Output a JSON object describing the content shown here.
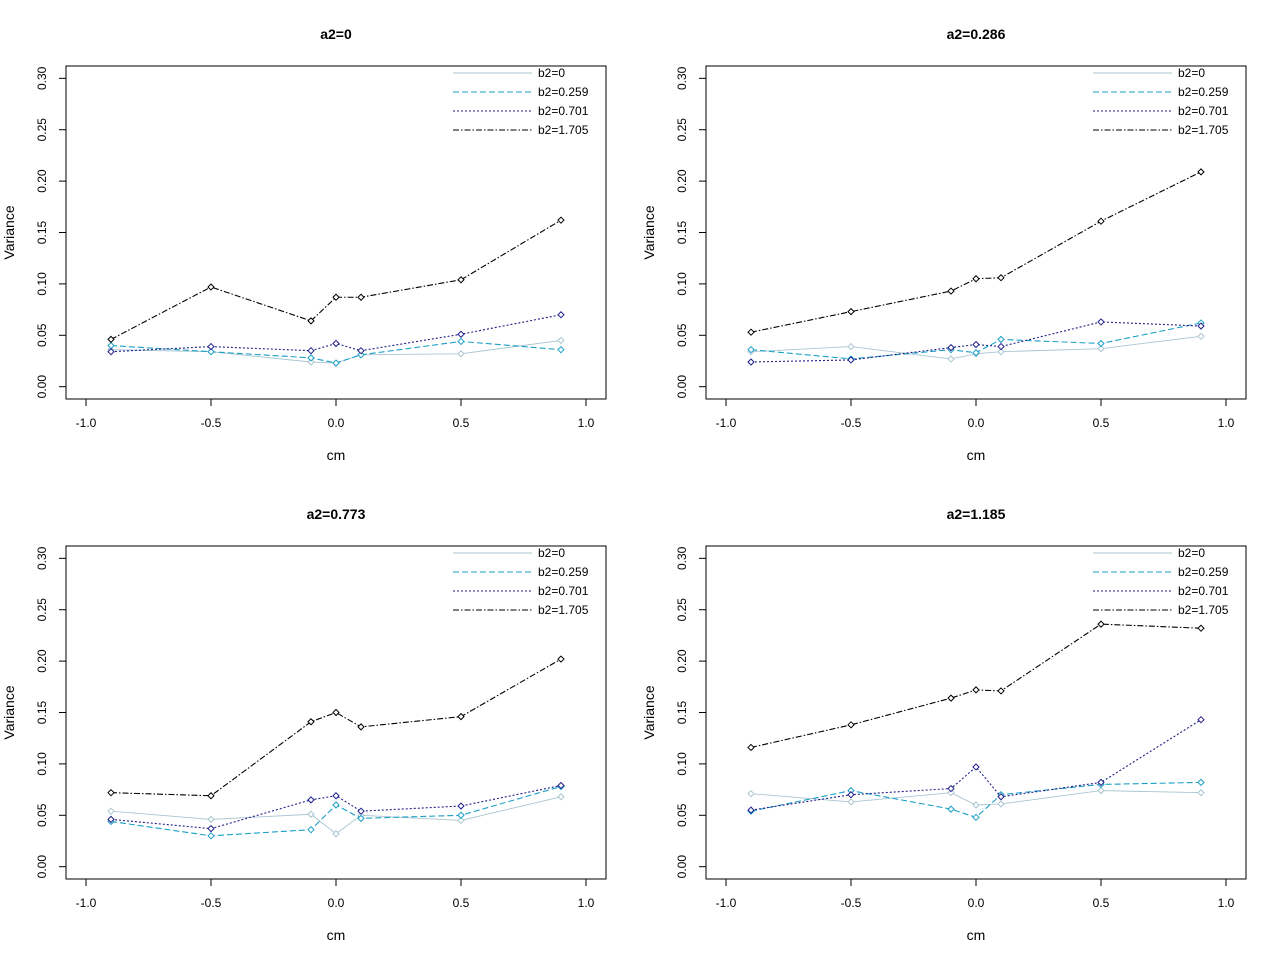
{
  "colors": {
    "b2_0": "#a9c5d0",
    "b2_0259": "#1a9fc7",
    "b2_0701": "#1f1f8a",
    "b2_1705": "#000000"
  },
  "chart_data": [
    {
      "type": "line",
      "title": "a2=0",
      "xlabel": "cm",
      "ylabel": "Variance",
      "xlim": [
        -1.0,
        1.0
      ],
      "ylim": [
        0.0,
        0.3
      ],
      "x_ticks": [
        "-1.0",
        "-0.5",
        "0.0",
        "0.5",
        "1.0"
      ],
      "y_ticks": [
        "0.00",
        "0.05",
        "0.10",
        "0.15",
        "0.20",
        "0.25",
        "0.30"
      ],
      "legend_position": "top-right",
      "x": [
        -0.9,
        -0.5,
        -0.1,
        0.0,
        0.1,
        0.5,
        0.9
      ],
      "series": [
        {
          "name": "b2=0",
          "values": [
            0.036,
            0.034,
            0.024,
            0.023,
            0.031,
            0.032,
            0.045
          ]
        },
        {
          "name": "b2=0.259",
          "values": [
            0.04,
            0.034,
            0.028,
            0.023,
            0.031,
            0.044,
            0.036
          ]
        },
        {
          "name": "b2=0.701",
          "values": [
            0.034,
            0.039,
            0.035,
            0.042,
            0.035,
            0.051,
            0.07
          ]
        },
        {
          "name": "b2=1.705",
          "values": [
            0.046,
            0.097,
            0.064,
            0.087,
            0.087,
            0.104,
            0.162
          ]
        }
      ]
    },
    {
      "type": "line",
      "title": "a2=0.286",
      "xlabel": "cm",
      "ylabel": "Variance",
      "xlim": [
        -1.0,
        1.0
      ],
      "ylim": [
        0.0,
        0.3
      ],
      "x_ticks": [
        "-1.0",
        "-0.5",
        "0.0",
        "0.5",
        "1.0"
      ],
      "y_ticks": [
        "0.00",
        "0.05",
        "0.10",
        "0.15",
        "0.20",
        "0.25",
        "0.30"
      ],
      "legend_position": "top-right",
      "x": [
        -0.9,
        -0.5,
        -0.1,
        0.0,
        0.1,
        0.5,
        0.9
      ],
      "series": [
        {
          "name": "b2=0",
          "values": [
            0.034,
            0.039,
            0.027,
            0.032,
            0.034,
            0.037,
            0.049
          ]
        },
        {
          "name": "b2=0.259",
          "values": [
            0.036,
            0.027,
            0.036,
            0.033,
            0.046,
            0.042,
            0.062
          ]
        },
        {
          "name": "b2=0.701",
          "values": [
            0.024,
            0.026,
            0.038,
            0.041,
            0.039,
            0.063,
            0.059
          ]
        },
        {
          "name": "b2=1.705",
          "values": [
            0.053,
            0.073,
            0.093,
            0.105,
            0.106,
            0.161,
            0.209
          ]
        }
      ]
    },
    {
      "type": "line",
      "title": "a2=0.773",
      "xlabel": "cm",
      "ylabel": "Variance",
      "xlim": [
        -1.0,
        1.0
      ],
      "ylim": [
        0.0,
        0.3
      ],
      "x_ticks": [
        "-1.0",
        "-0.5",
        "0.0",
        "0.5",
        "1.0"
      ],
      "y_ticks": [
        "0.00",
        "0.05",
        "0.10",
        "0.15",
        "0.20",
        "0.25",
        "0.30"
      ],
      "legend_position": "top-right",
      "x": [
        -0.9,
        -0.5,
        -0.1,
        0.0,
        0.1,
        0.5,
        0.9
      ],
      "series": [
        {
          "name": "b2=0",
          "values": [
            0.054,
            0.046,
            0.051,
            0.032,
            0.05,
            0.045,
            0.068
          ]
        },
        {
          "name": "b2=0.259",
          "values": [
            0.044,
            0.03,
            0.036,
            0.06,
            0.047,
            0.05,
            0.078
          ]
        },
        {
          "name": "b2=0.701",
          "values": [
            0.046,
            0.037,
            0.065,
            0.069,
            0.054,
            0.059,
            0.079
          ]
        },
        {
          "name": "b2=1.705",
          "values": [
            0.072,
            0.069,
            0.141,
            0.15,
            0.136,
            0.146,
            0.202
          ]
        }
      ]
    },
    {
      "type": "line",
      "title": "a2=1.185",
      "xlabel": "cm",
      "ylabel": "Variance",
      "xlim": [
        -1.0,
        1.0
      ],
      "ylim": [
        0.0,
        0.3
      ],
      "x_ticks": [
        "-1.0",
        "-0.5",
        "0.0",
        "0.5",
        "1.0"
      ],
      "y_ticks": [
        "0.00",
        "0.05",
        "0.10",
        "0.15",
        "0.20",
        "0.25",
        "0.30"
      ],
      "legend_position": "top-right",
      "x": [
        -0.9,
        -0.5,
        -0.1,
        0.0,
        0.1,
        0.5,
        0.9
      ],
      "series": [
        {
          "name": "b2=0",
          "values": [
            0.071,
            0.063,
            0.072,
            0.06,
            0.061,
            0.074,
            0.072
          ]
        },
        {
          "name": "b2=0.259",
          "values": [
            0.054,
            0.074,
            0.056,
            0.048,
            0.07,
            0.08,
            0.082
          ]
        },
        {
          "name": "b2=0.701",
          "values": [
            0.055,
            0.07,
            0.076,
            0.097,
            0.068,
            0.082,
            0.143
          ]
        },
        {
          "name": "b2=1.705",
          "values": [
            0.116,
            0.138,
            0.164,
            0.172,
            0.171,
            0.236,
            0.232
          ]
        }
      ]
    }
  ]
}
